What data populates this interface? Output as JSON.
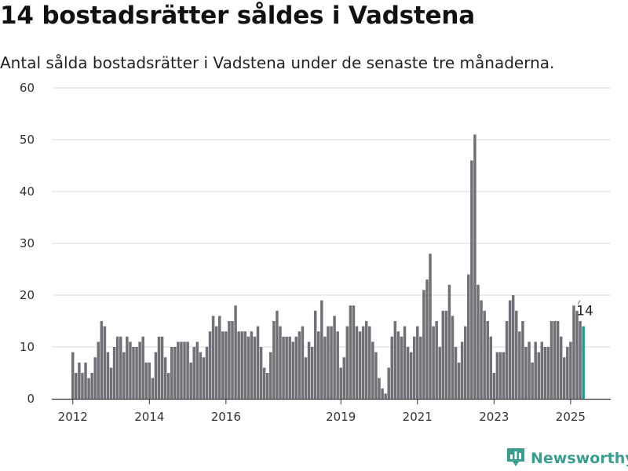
{
  "header": {
    "title": "14 bostadsrätter såldes i Vadstena",
    "subtitle": "Antal sålda bostadsrätter i Vadstena under de senaste tre månaderna."
  },
  "brand": {
    "name": "Newsworthy",
    "logo_icon": "bar-chart-badge-icon",
    "color": "#3a9e8f"
  },
  "chart_data": {
    "type": "bar",
    "title": "14 bostadsrätter såldes i Vadstena",
    "subtitle": "Antal sålda bostadsrätter i Vadstena under de senaste tre månaderna.",
    "xlabel": "",
    "ylabel": "",
    "ylim": [
      0,
      60
    ],
    "yticks": [
      0,
      10,
      20,
      30,
      40,
      50,
      60
    ],
    "xticks": [
      "2012",
      "2014",
      "2016",
      "2019",
      "2021",
      "2023",
      "2025"
    ],
    "grid": true,
    "colors": {
      "bar": "#727077",
      "highlight": "#1f9a8f"
    },
    "highlight_label": "14",
    "series": [
      {
        "values": [
          9,
          5,
          7,
          5,
          7,
          4,
          5,
          8,
          11,
          15,
          14,
          9,
          6,
          10,
          12,
          12,
          9,
          12,
          11,
          10,
          10,
          11,
          12,
          7,
          7,
          4,
          9,
          12,
          12,
          8,
          5,
          10,
          10,
          11,
          11,
          11,
          11,
          7,
          10,
          11,
          9,
          8,
          10,
          13,
          16,
          14,
          16,
          13,
          13,
          15,
          15,
          18,
          13,
          13,
          13,
          12,
          13,
          12,
          14,
          10,
          6,
          5,
          9,
          15,
          17,
          14,
          12,
          12,
          12,
          11,
          12,
          13,
          14,
          8,
          11,
          10,
          17,
          13,
          19,
          12,
          14,
          14,
          16,
          13,
          6,
          8,
          14,
          18,
          18,
          14,
          13,
          14,
          15,
          14,
          11,
          9,
          4,
          2,
          1,
          6,
          12,
          15,
          13,
          12,
          14,
          10,
          9,
          12,
          14,
          12,
          21,
          23,
          28,
          14,
          15,
          10,
          17,
          17,
          22,
          16,
          10,
          7,
          11,
          14,
          24,
          46,
          51,
          22,
          19,
          17,
          15,
          12,
          5,
          9,
          9,
          9,
          15,
          19,
          20,
          17,
          13,
          15,
          10,
          11,
          7,
          11,
          9,
          11,
          10,
          10,
          15,
          15,
          15,
          12,
          8,
          10,
          11,
          18,
          17,
          15,
          14
        ]
      }
    ]
  }
}
